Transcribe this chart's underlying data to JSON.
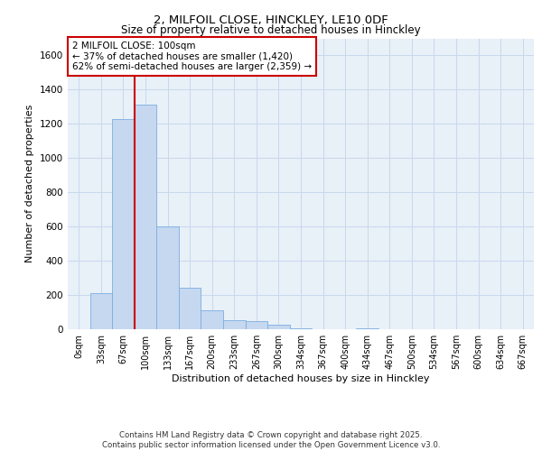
{
  "title1": "2, MILFOIL CLOSE, HINCKLEY, LE10 0DF",
  "title2": "Size of property relative to detached houses in Hinckley",
  "xlabel": "Distribution of detached houses by size in Hinckley",
  "ylabel": "Number of detached properties",
  "footer1": "Contains HM Land Registry data © Crown copyright and database right 2025.",
  "footer2": "Contains public sector information licensed under the Open Government Licence v3.0.",
  "bar_labels": [
    "0sqm",
    "33sqm",
    "67sqm",
    "100sqm",
    "133sqm",
    "167sqm",
    "200sqm",
    "233sqm",
    "267sqm",
    "300sqm",
    "334sqm",
    "367sqm",
    "400sqm",
    "434sqm",
    "467sqm",
    "500sqm",
    "534sqm",
    "567sqm",
    "600sqm",
    "634sqm",
    "667sqm"
  ],
  "bar_values": [
    0,
    210,
    1230,
    1310,
    600,
    240,
    110,
    55,
    50,
    25,
    5,
    0,
    0,
    5,
    0,
    0,
    0,
    0,
    0,
    0,
    0
  ],
  "bar_color": "#c5d8f0",
  "bar_edge_color": "#7aade0",
  "grid_color": "#c8d8ec",
  "background_color": "#e8f0f8",
  "red_line_index": 3,
  "annotation_line1": "2 MILFOIL CLOSE: 100sqm",
  "annotation_line2": "← 37% of detached houses are smaller (1,420)",
  "annotation_line3": "62% of semi-detached houses are larger (2,359) →",
  "annotation_box_color": "#ffffff",
  "annotation_box_edge": "#cc0000",
  "red_line_color": "#cc0000",
  "ylim_max": 1700,
  "yticks": [
    0,
    200,
    400,
    600,
    800,
    1000,
    1200,
    1400,
    1600
  ]
}
